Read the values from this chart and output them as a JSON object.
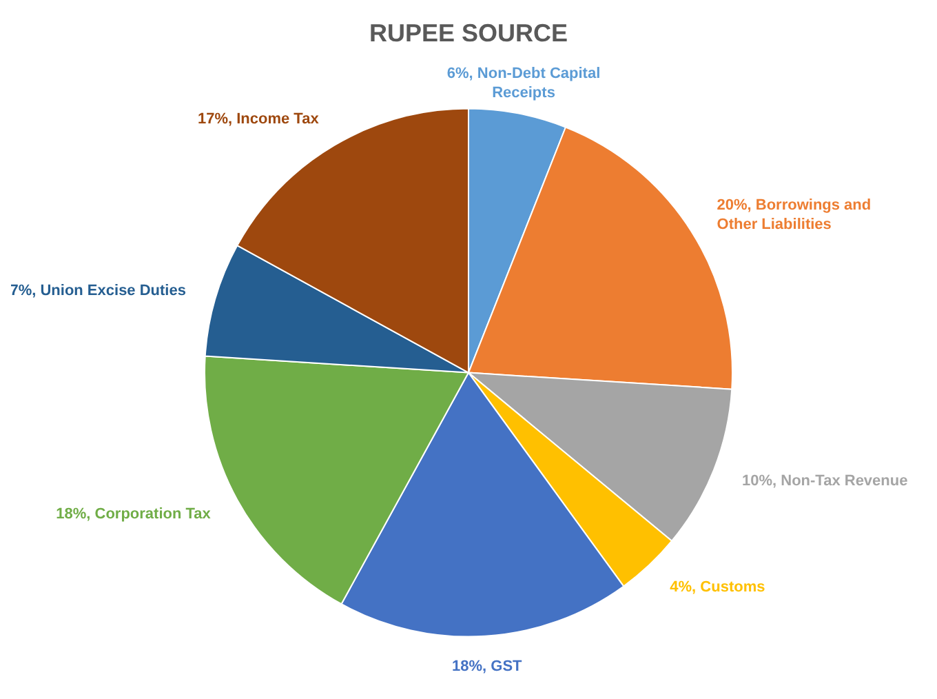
{
  "chart_data": {
    "type": "pie",
    "title": "RUPEE SOURCE",
    "categories": [
      "Non-Debt Capital Receipts",
      "Borrowings and Other Liabilities",
      "Non-Tax Revenue",
      "Customs",
      "GST",
      "Corporation Tax",
      "Union Excise Duties",
      "Income Tax"
    ],
    "values": [
      6,
      20,
      10,
      4,
      18,
      18,
      7,
      17
    ],
    "value_labels": [
      "6%",
      "20%",
      "10%",
      "4%",
      "18%",
      "18%",
      "7%",
      "17%"
    ],
    "colors": [
      "#5b9bd5",
      "#ed7d31",
      "#a5a5a5",
      "#ffc000",
      "#4472c4",
      "#70ad47",
      "#255e91",
      "#9e480e"
    ],
    "legend": false
  }
}
